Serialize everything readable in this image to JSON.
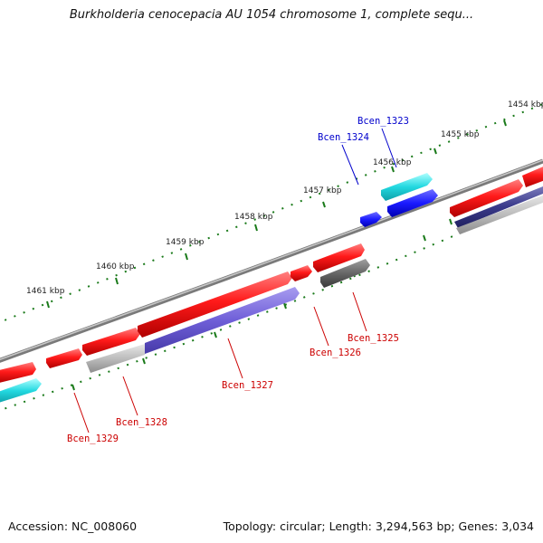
{
  "title": "Burkholderia cenocepacia AU 1054 chromosome 1, complete sequ...",
  "footer": {
    "accession": "Accession: NC_008060",
    "summary": "Topology: circular; Length: 3,294,563 bp; Genes: 3,034"
  },
  "colors": {
    "backbone": "#8a8a8a",
    "forward_gene": "#ff1a1a",
    "reverse_gene_blue": "#6f5fd8",
    "cyan_gene": "#22d8e0",
    "dark_gene": "#666666",
    "pseudo_gene": "#bdbdbd",
    "blue_gene": "#1a1aff",
    "tick": "#1a7a1a",
    "label_red": "#cc0000",
    "label_blue": "#0000cc"
  },
  "ticks": [
    {
      "label": "1454 kbp"
    },
    {
      "label": "1455 kbp"
    },
    {
      "label": "1456 kbp"
    },
    {
      "label": "1457 kbp"
    },
    {
      "label": "1458 kbp"
    },
    {
      "label": "1459 kbp"
    },
    {
      "label": "1460 kbp"
    },
    {
      "label": "1461 kbp"
    }
  ],
  "gene_labels": {
    "bcen_1323": "Bcen_1323",
    "bcen_1324": "Bcen_1324",
    "bcen_1325": "Bcen_1325",
    "bcen_1326": "Bcen_1326",
    "bcen_1327": "Bcen_1327",
    "bcen_1328": "Bcen_1328",
    "bcen_1329": "Bcen_1329"
  }
}
